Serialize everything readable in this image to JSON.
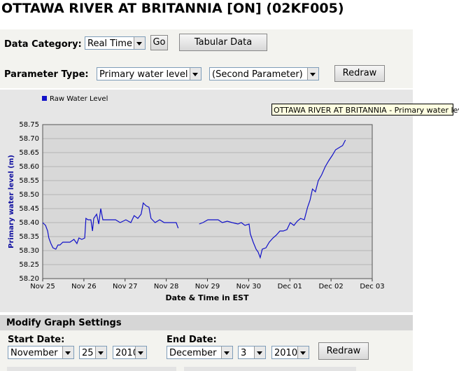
{
  "header": {
    "title": "OTTAWA RIVER AT BRITANNIA [ON] (02KF005)"
  },
  "controls": {
    "data_category_label": "Data Category:",
    "data_category": "Real Time",
    "go": "Go",
    "tabular": "Tabular Data",
    "parameter_label": "Parameter Type:",
    "parameter": "Primary water level",
    "second_parameter": "(Second Parameter)",
    "redraw": "Redraw"
  },
  "tooltip": "OTTAWA RIVER AT BRITANNIA - Primary water level",
  "chart_data": {
    "type": "line",
    "x_label": "Date & Time in EST",
    "y_label": "Primary water level (m)",
    "xlim": [
      0,
      8
    ],
    "xticks": [
      {
        "value": 0,
        "label": "Nov 25"
      },
      {
        "value": 1,
        "label": "Nov 26"
      },
      {
        "value": 2,
        "label": "Nov 27"
      },
      {
        "value": 3,
        "label": "Nov 28"
      },
      {
        "value": 4,
        "label": "Nov 29"
      },
      {
        "value": 5,
        "label": "Nov 30"
      },
      {
        "value": 6,
        "label": "Dec 01"
      },
      {
        "value": 7,
        "label": "Dec 02"
      },
      {
        "value": 8,
        "label": "Dec 03"
      }
    ],
    "ylim": [
      58.2,
      58.75
    ],
    "yticks": [
      {
        "value": 58.2,
        "label": "58.20"
      },
      58.25,
      {
        "value": 58.3,
        "label": "58.30"
      },
      58.35,
      {
        "value": 58.4,
        "label": "58.40"
      },
      58.45,
      {
        "value": 58.5,
        "label": "58.50"
      },
      58.55,
      {
        "value": 58.6,
        "label": "58.60"
      },
      58.65,
      {
        "value": 58.7,
        "label": "58.70"
      },
      58.75
    ],
    "grid": true,
    "legend": "top-left",
    "series": [
      {
        "name": "Raw Water Level",
        "color": "#1010c8",
        "x": [
          0,
          0.07,
          0.12,
          0.15,
          0.2,
          0.25,
          0.32,
          0.37,
          0.42,
          0.49,
          0.58,
          0.66,
          0.76,
          0.83,
          0.88,
          0.95,
          1.02,
          1.05,
          1.1,
          1.17,
          1.21,
          1.24,
          1.31,
          1.36,
          1.41,
          1.46,
          1.55,
          1.65,
          1.77,
          1.88,
          2.02,
          2.14,
          2.22,
          2.31,
          2.39,
          2.44,
          2.51,
          2.58,
          2.63,
          2.73,
          2.84,
          2.95,
          3.07,
          3.17,
          3.24,
          3.29,
          3.55,
          3.8,
          3.89,
          4.01,
          4.14,
          4.26,
          4.36,
          4.48,
          4.6,
          4.74,
          4.82,
          4.91,
          5.01,
          5.04,
          5.11,
          5.18,
          5.23,
          5.28,
          5.33,
          5.42,
          5.5,
          5.59,
          5.67,
          5.76,
          5.84,
          5.93,
          6.01,
          6.1,
          6.18,
          6.26,
          6.35,
          6.43,
          6.49,
          6.55,
          6.62,
          6.69,
          6.77,
          6.86,
          6.94,
          7.03,
          7.11,
          7.22,
          7.28,
          7.35
        ],
        "values": [
          58.4,
          58.39,
          58.37,
          58.345,
          58.325,
          58.31,
          58.305,
          58.32,
          58.32,
          58.33,
          58.33,
          58.33,
          58.34,
          58.325,
          58.345,
          58.34,
          58.345,
          58.415,
          58.41,
          58.41,
          58.37,
          58.415,
          58.43,
          58.395,
          58.45,
          58.41,
          58.41,
          58.41,
          58.41,
          58.4,
          58.41,
          58.4,
          58.425,
          58.415,
          58.43,
          58.47,
          58.46,
          58.455,
          58.415,
          58.4,
          58.41,
          58.4,
          58.4,
          58.4,
          58.4,
          58.38,
          null,
          58.395,
          58.4,
          58.41,
          58.41,
          58.41,
          58.4,
          58.405,
          58.4,
          58.395,
          58.4,
          58.39,
          58.395,
          58.36,
          58.33,
          58.305,
          58.295,
          58.275,
          58.305,
          58.31,
          58.33,
          58.345,
          58.355,
          58.37,
          58.37,
          58.375,
          58.4,
          58.39,
          58.405,
          58.415,
          58.41,
          58.455,
          58.48,
          58.52,
          58.51,
          58.55,
          58.57,
          58.6,
          58.62,
          58.64,
          58.66,
          58.67,
          58.675,
          58.695
        ]
      }
    ]
  },
  "settings": {
    "title": "Modify Graph Settings",
    "start_label": "Start Date:",
    "start_month": "November",
    "start_day": "25",
    "start_year": "2010",
    "end_label": "End Date:",
    "end_month": "December",
    "end_day": "3",
    "end_year": "2010",
    "redraw": "Redraw"
  }
}
